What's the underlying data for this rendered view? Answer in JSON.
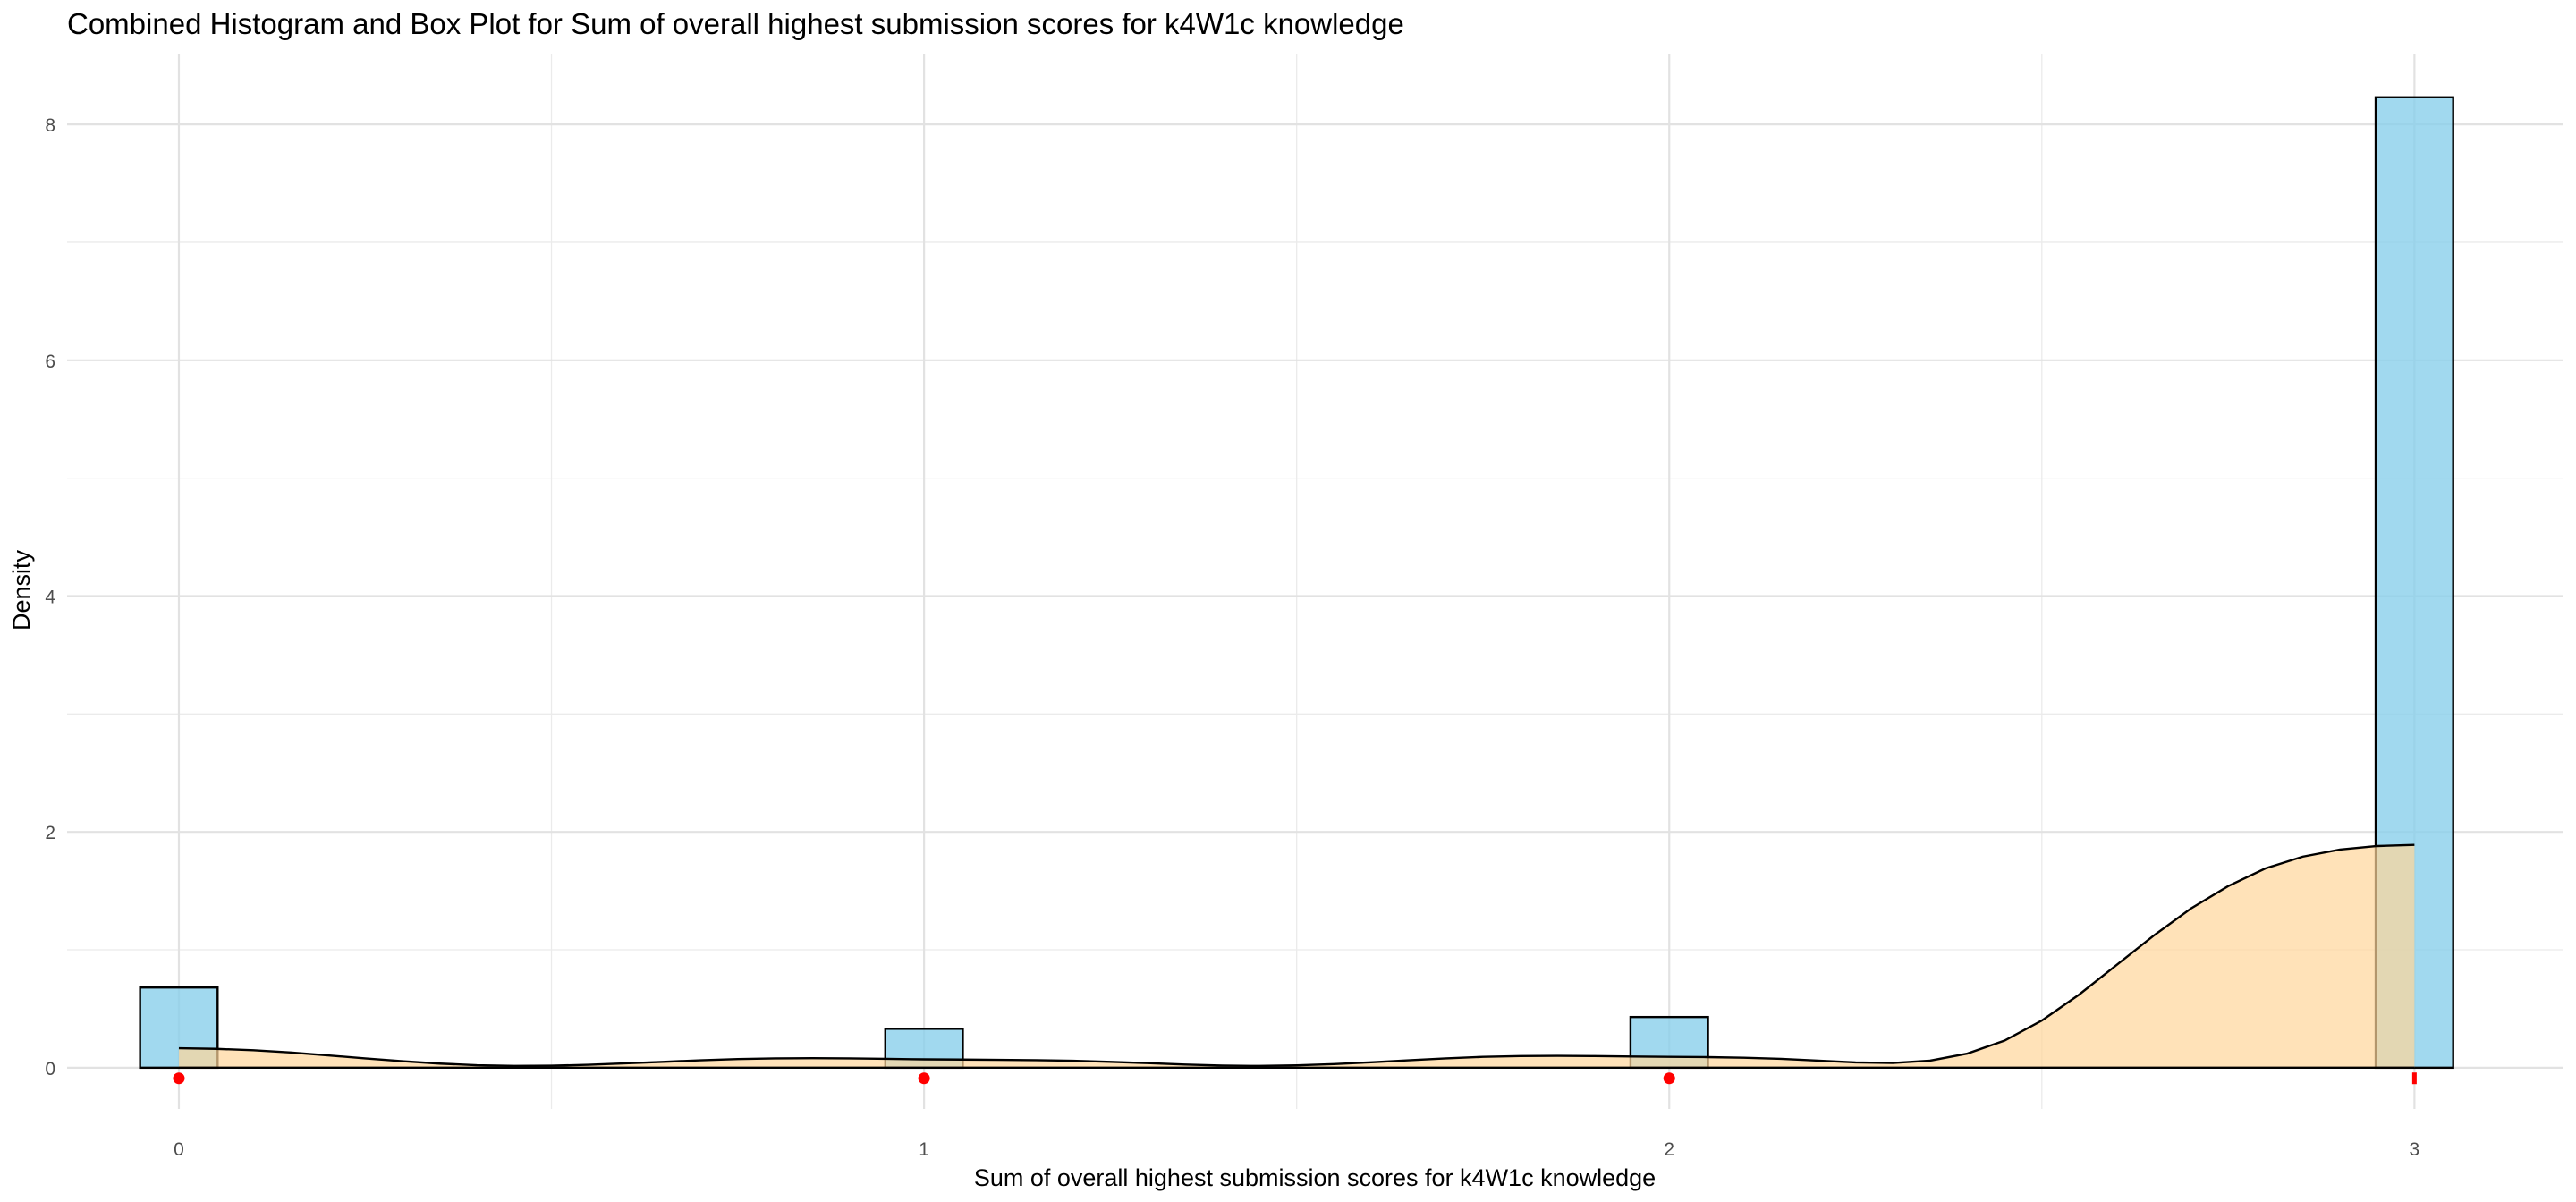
{
  "chart_data": {
    "type": "bar",
    "title": "Combined Histogram and Box Plot for Sum of overall highest submission scores for k4W1c knowledge",
    "xlabel": "Sum of overall highest submission scores for k4W1c knowledge",
    "ylabel": "Density",
    "xlim": [
      -0.15,
      3.2
    ],
    "ylim": [
      -0.35,
      8.6
    ],
    "x_ticks": [
      0,
      1,
      2,
      3
    ],
    "x_tick_labels": [
      "0",
      "1",
      "2",
      "3"
    ],
    "y_ticks": [
      0,
      2,
      4,
      6,
      8
    ],
    "y_tick_labels": [
      "0",
      "2",
      "4",
      "6",
      "8"
    ],
    "grid": true,
    "legend": "none",
    "histogram": {
      "bin_width": 0.104,
      "bars": [
        {
          "x": 0,
          "density": 0.68
        },
        {
          "x": 1,
          "density": 0.33
        },
        {
          "x": 2,
          "density": 0.43
        },
        {
          "x": 3,
          "density": 8.23
        }
      ],
      "fill": "#87ceeb",
      "stroke": "#000000"
    },
    "density_curve": {
      "fill": "#ffd59a",
      "stroke": "#000000",
      "x": [
        0,
        0.05,
        0.1,
        0.15,
        0.2,
        0.25,
        0.3,
        0.35,
        0.4,
        0.45,
        0.5,
        0.55,
        0.6,
        0.65,
        0.7,
        0.75,
        0.8,
        0.85,
        0.9,
        0.95,
        1.0,
        1.05,
        1.1,
        1.15,
        1.2,
        1.25,
        1.3,
        1.35,
        1.4,
        1.45,
        1.5,
        1.55,
        1.6,
        1.65,
        1.7,
        1.75,
        1.8,
        1.85,
        1.9,
        1.95,
        2.0,
        2.05,
        2.1,
        2.15,
        2.2,
        2.25,
        2.3,
        2.35,
        2.4,
        2.45,
        2.5,
        2.55,
        2.6,
        2.65,
        2.7,
        2.75,
        2.8,
        2.85,
        2.9,
        2.95,
        3.0
      ],
      "y": [
        0.165,
        0.16,
        0.148,
        0.129,
        0.105,
        0.079,
        0.055,
        0.035,
        0.021,
        0.015,
        0.017,
        0.025,
        0.037,
        0.05,
        0.063,
        0.073,
        0.079,
        0.081,
        0.079,
        0.075,
        0.071,
        0.069,
        0.067,
        0.064,
        0.059,
        0.05,
        0.039,
        0.027,
        0.018,
        0.015,
        0.02,
        0.031,
        0.046,
        0.063,
        0.079,
        0.092,
        0.099,
        0.101,
        0.099,
        0.095,
        0.092,
        0.09,
        0.085,
        0.075,
        0.06,
        0.045,
        0.04,
        0.06,
        0.12,
        0.23,
        0.4,
        0.62,
        0.87,
        1.12,
        1.35,
        1.54,
        1.69,
        1.79,
        1.85,
        1.88,
        1.89
      ]
    },
    "box_plot": {
      "color": "#ff0000",
      "y_position": -0.09,
      "points": [
        0,
        1,
        2
      ],
      "box": {
        "q1": 3,
        "median": 3,
        "q3": 3
      }
    }
  }
}
